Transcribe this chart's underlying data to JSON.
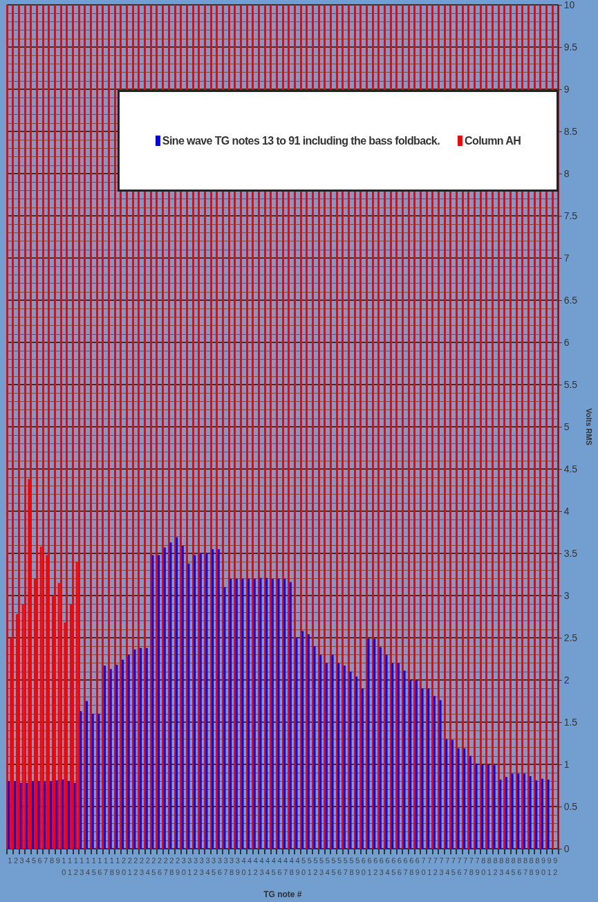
{
  "chart_data": {
    "type": "bar",
    "xlabel": "TG note #",
    "ylabel": "Volts RMS",
    "categories": [
      "1",
      "2",
      "3",
      "4",
      "5",
      "6",
      "7",
      "8",
      "9",
      "10",
      "11",
      "12",
      "13",
      "14",
      "15",
      "16",
      "17",
      "18",
      "19",
      "20",
      "21",
      "22",
      "23",
      "24",
      "25",
      "26",
      "27",
      "28",
      "29",
      "30",
      "31",
      "32",
      "33",
      "34",
      "35",
      "36",
      "37",
      "38",
      "39",
      "40",
      "41",
      "42",
      "43",
      "44",
      "45",
      "46",
      "47",
      "48",
      "49",
      "50",
      "51",
      "52",
      "53",
      "54",
      "55",
      "56",
      "57",
      "58",
      "59",
      "60",
      "61",
      "62",
      "63",
      "64",
      "65",
      "66",
      "67",
      "68",
      "69",
      "70",
      "71",
      "72",
      "73",
      "74",
      "75",
      "76",
      "77",
      "78",
      "79",
      "80",
      "81",
      "82",
      "83",
      "84",
      "85",
      "86",
      "87",
      "88",
      "89",
      "90",
      "91",
      "92"
    ],
    "series": [
      {
        "name": "Sine wave TG notes 13 to 91 including the bass foldback.",
        "color": "#0000ff",
        "values": [
          0.8,
          0.8,
          0.78,
          0.78,
          0.8,
          0.8,
          0.8,
          0.8,
          0.81,
          0.82,
          0.8,
          0.78,
          1.63,
          1.75,
          1.6,
          1.6,
          2.17,
          2.13,
          2.18,
          2.24,
          2.3,
          2.36,
          2.38,
          2.38,
          3.48,
          3.48,
          3.57,
          3.63,
          3.69,
          3.59,
          3.38,
          3.48,
          3.5,
          3.5,
          3.55,
          3.55,
          3.1,
          3.2,
          3.2,
          3.2,
          3.2,
          3.2,
          3.21,
          3.21,
          3.2,
          3.2,
          3.2,
          3.16,
          2.5,
          2.58,
          2.54,
          2.4,
          2.3,
          2.2,
          2.3,
          2.2,
          2.17,
          2.1,
          2.04,
          1.9,
          2.49,
          2.49,
          2.39,
          2.3,
          2.2,
          2.2,
          2.11,
          2.0,
          2.0,
          1.9,
          1.9,
          1.81,
          1.76,
          1.3,
          1.29,
          1.19,
          1.19,
          1.1,
          1.01,
          1.0,
          1.0,
          0.99,
          0.82,
          0.85,
          0.89,
          0.89,
          0.89,
          0.86,
          0.81,
          0.83,
          0.82,
          null
        ]
      },
      {
        "name": "Column AH",
        "color": "#ff0000",
        "values": [
          2.5,
          2.78,
          2.9,
          4.38,
          3.2,
          3.58,
          3.48,
          3.0,
          3.15,
          2.68,
          2.9,
          3.4,
          null,
          null,
          null,
          null,
          null,
          null,
          null,
          null,
          null,
          null,
          null,
          null,
          null,
          null,
          null,
          null,
          null,
          null,
          null,
          null,
          null,
          null,
          null,
          null,
          null,
          null,
          null,
          null,
          null,
          null,
          null,
          null,
          null,
          null,
          null,
          null,
          null,
          null,
          null,
          null,
          null,
          null,
          null,
          null,
          null,
          null,
          null,
          null,
          null,
          null,
          null,
          null,
          null,
          null,
          null,
          null,
          null,
          null,
          null,
          null,
          null,
          null,
          null,
          null,
          null,
          null,
          null,
          null,
          null,
          null,
          null,
          null,
          null,
          null,
          null,
          null,
          null,
          null,
          null,
          null
        ]
      }
    ],
    "ylim": [
      0,
      10
    ],
    "yticks": [
      0,
      0.5,
      1,
      1.5,
      2,
      2.5,
      3,
      3.5,
      4,
      4.5,
      5,
      5.5,
      6,
      6.5,
      7,
      7.5,
      8,
      8.5,
      9,
      9.5,
      10
    ],
    "grid": true,
    "legend": "top"
  }
}
